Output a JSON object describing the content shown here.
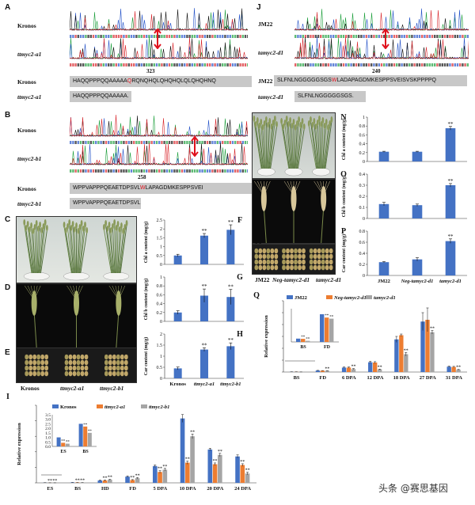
{
  "panels": {
    "A": {
      "label": "A",
      "trace1_label": "Kronos",
      "trace2_label": "ttmyc2-a1",
      "position_number": "323",
      "seq_wt_label": "Kronos",
      "seq_wt_pre": "HAQQPPPQQAAAAA",
      "seq_wt_mut": "Q",
      "seq_wt_post": "RQNQHQLQHQHQLQLQHQHNQ",
      "seq_mut_label": "ttmyc2-a1",
      "seq_mut": "HAQQPPPQQAAAAA."
    },
    "B": {
      "label": "B",
      "trace1_label": "Kronos",
      "trace2_label": "ttmyc2-b1",
      "position_number": "258",
      "seq_wt_label": "Kronos",
      "seq_wt_pre": "WPPVAPPPQEAETDPSVL",
      "seq_wt_mut": "W",
      "seq_wt_post": "LAPAGDMKESPPSVEI",
      "seq_mut_label": "ttmyc2-b1",
      "seq_mut": "WPPVAPPPQEAETDPSVL."
    },
    "J": {
      "label": "J",
      "trace1_label": "JM22",
      "trace2_label": "tamyc2-d1",
      "position_number": "240",
      "seq_wt_label": "JM22",
      "seq_wt_pre": "SLFNLNGGGGGSGS",
      "seq_wt_mut": "W",
      "seq_wt_post": "LADAPAGDMKESPPSVEISVSKPPPPQ",
      "seq_mut_label": "tamyc2-d1",
      "seq_mut": "SLFNLNGGGGGSGS."
    },
    "C": {
      "label": "C"
    },
    "D": {
      "label": "D"
    },
    "E": {
      "label": "E"
    },
    "K": {
      "label": "K"
    },
    "L": {
      "label": "L"
    },
    "M": {
      "label": "M"
    },
    "photos_left_labels": [
      "Kronos",
      "ttmyc2-a1",
      "ttmyc2-b1"
    ],
    "photos_right_labels": [
      "JM22",
      "Neg-tamyc2-d1",
      "tamyc2-d1"
    ]
  },
  "colors": {
    "blue": "#4472c4",
    "orange": "#ed7d31",
    "gray": "#a5a5a5",
    "seqbox": "#c8c8c8",
    "mutation": "#e0101c"
  },
  "chart_data": [
    {
      "id": "F",
      "label": "F",
      "type": "bar",
      "categories": [
        "Kronos",
        "ttmyc2-a1",
        "ttmyc2-b1"
      ],
      "values": [
        0.5,
        1.62,
        1.95
      ],
      "errors": [
        0.07,
        0.12,
        0.28
      ],
      "sig": [
        "",
        "**",
        "**"
      ],
      "ylabel": "Chl a content (mg/g)",
      "ylim": [
        0,
        2.5
      ],
      "yticks": [
        "0",
        "0.5",
        "1",
        "1.5",
        "2",
        "2.5"
      ],
      "show_xticks": false
    },
    {
      "id": "G",
      "label": "G",
      "type": "bar",
      "categories": [
        "Kronos",
        "ttmyc2-a1",
        "ttmyc2-b1"
      ],
      "values": [
        0.2,
        0.58,
        0.55
      ],
      "errors": [
        0.04,
        0.15,
        0.17
      ],
      "sig": [
        "",
        "**",
        "**"
      ],
      "ylabel": "Chl b content (mg/g)",
      "ylim": [
        0,
        1
      ],
      "yticks": [
        "0",
        "0.2",
        "0.4",
        "0.6",
        "0.8",
        "1"
      ],
      "show_xticks": false
    },
    {
      "id": "H",
      "label": "H",
      "type": "bar",
      "categories": [
        "Kronos",
        "ttmyc2-a1",
        "ttmyc2-b1"
      ],
      "values": [
        0.45,
        1.3,
        1.45
      ],
      "errors": [
        0.06,
        0.08,
        0.15
      ],
      "sig": [
        "",
        "**",
        "**"
      ],
      "ylabel": "Car content (mg/g)",
      "ylim": [
        0,
        2
      ],
      "yticks": [
        "0",
        "0.5",
        "1",
        "1.5",
        "2"
      ],
      "show_xticks": true
    },
    {
      "id": "N",
      "label": "N",
      "type": "bar",
      "categories": [
        "JM22",
        "Neg-tamyc2-d1",
        "tamyc2-d1"
      ],
      "values": [
        0.22,
        0.22,
        0.75
      ],
      "errors": [
        0.01,
        0.01,
        0.04
      ],
      "sig": [
        "",
        "",
        "**"
      ],
      "ylabel": "Chl a content (mg/g)",
      "ylim": [
        0,
        1
      ],
      "yticks": [
        "0",
        "0.2",
        "0.4",
        "0.6",
        "0.8",
        "1"
      ],
      "show_xticks": false
    },
    {
      "id": "O",
      "label": "O",
      "type": "bar",
      "categories": [
        "JM22",
        "Neg-tamyc2-d1",
        "tamyc2-d1"
      ],
      "values": [
        0.13,
        0.12,
        0.3
      ],
      "errors": [
        0.015,
        0.01,
        0.015
      ],
      "sig": [
        "",
        "",
        "**"
      ],
      "ylabel": "Chl b content (mg/g)",
      "ylim": [
        0,
        0.4
      ],
      "yticks": [
        "0",
        "0.1",
        "0.2",
        "0.3",
        "0.4"
      ],
      "show_xticks": false
    },
    {
      "id": "P",
      "label": "P",
      "type": "bar",
      "categories": [
        "JM22",
        "Neg-tamyc2-d1",
        "tamyc2-d1"
      ],
      "values": [
        0.24,
        0.29,
        0.62
      ],
      "errors": [
        0.01,
        0.03,
        0.04
      ],
      "sig": [
        "",
        "",
        "**"
      ],
      "ylabel": "Car content (mg/g)",
      "ylim": [
        0,
        0.8
      ],
      "yticks": [
        "0",
        "0.2",
        "0.4",
        "0.6",
        "0.8"
      ],
      "show_xticks": true
    },
    {
      "id": "Q",
      "label": "Q",
      "type": "bar",
      "categories": [
        "BS",
        "FD",
        "6 DPA",
        "12 DPA",
        "18 DPA",
        "27 DPA",
        "31 DPA"
      ],
      "series": [
        {
          "name": "JM22",
          "values": [
            0.3,
            2.5,
            7.5,
            16.5,
            55,
            85,
            9
          ],
          "errors": [
            0.1,
            0.3,
            1,
            1.5,
            5,
            15,
            1
          ]
        },
        {
          "name": "Neg-tamyc2-d1",
          "values": [
            0.28,
            2.2,
            7.5,
            16,
            62,
            88,
            8.5
          ],
          "errors": [
            0.1,
            0.3,
            1,
            1.5,
            2,
            20,
            1
          ]
        },
        {
          "name": "tamyc2-d1",
          "values": [
            0.1,
            2.1,
            5,
            4.5,
            30,
            67,
            4
          ],
          "errors": [
            0.05,
            0.2,
            0.8,
            0.5,
            3,
            3,
            0.5
          ]
        }
      ],
      "sig": [
        [
          "",
          "",
          ""
        ],
        [
          "",
          "",
          "**"
        ],
        [
          "",
          "",
          "**"
        ],
        [
          "",
          "",
          "**"
        ],
        [
          "",
          "",
          "**"
        ],
        [
          "",
          "",
          "**"
        ],
        [
          "",
          "",
          "**"
        ]
      ],
      "ylabel": "Relative expression",
      "ylim": [
        0,
        120
      ],
      "yticks": [
        "0",
        "20",
        "40",
        "60",
        "80",
        "100",
        "120"
      ],
      "inset": {
        "categories": [
          "BS",
          "FD"
        ],
        "series_values": [
          [
            0.3,
            2.5
          ],
          [
            0.28,
            2.2
          ],
          [
            0.1,
            2.1
          ]
        ],
        "ylim": [
          0,
          3
        ]
      }
    },
    {
      "id": "I",
      "label": "I",
      "type": "bar",
      "categories": [
        "ES",
        "BS",
        "HD",
        "FD",
        "5 DPA",
        "10 DPA",
        "20 DPA",
        "24 DPA"
      ],
      "series": [
        {
          "name": "Kronos",
          "values": [
            1.0,
            2.5,
            15,
            40,
            108,
            415,
            215,
            170
          ],
          "errors": [
            0.2,
            0.3,
            3,
            5,
            8,
            25,
            8,
            10
          ]
        },
        {
          "name": "ttmyc2-a1",
          "values": [
            0.4,
            2.2,
            15,
            18,
            70,
            130,
            120,
            115
          ],
          "errors": [
            0.1,
            0.3,
            3,
            3,
            8,
            10,
            8,
            8
          ]
        },
        {
          "name": "ttmyc2-b1",
          "values": [
            0.3,
            1.5,
            20,
            30,
            85,
            300,
            180,
            60
          ],
          "errors": [
            0.1,
            0.3,
            3,
            4,
            8,
            15,
            10,
            8
          ]
        }
      ],
      "sig": [
        [
          "",
          "**",
          "**"
        ],
        [
          "",
          "**",
          "**"
        ],
        [
          "",
          "**",
          "**"
        ],
        [
          "",
          "**",
          "**"
        ],
        [
          "",
          "**",
          "**"
        ],
        [
          "",
          "**",
          "**"
        ],
        [
          "",
          "**",
          "**"
        ],
        [
          "",
          "**",
          "**"
        ]
      ],
      "ylabel": "Relative expression",
      "ylim": [
        0,
        500
      ],
      "yticks": [
        "0",
        "100",
        "200",
        "300",
        "400",
        "500"
      ],
      "inset": {
        "categories": [
          "ES",
          "BS"
        ],
        "series_values": [
          [
            1.0,
            2.5
          ],
          [
            0.4,
            2.2
          ],
          [
            0.3,
            1.5
          ]
        ],
        "ylim": [
          0,
          3.5
        ],
        "yticks": [
          "0.0",
          "0.5",
          "1.0",
          "1.5",
          "2.0",
          "2.5",
          "3.0",
          "3.5"
        ]
      }
    }
  ],
  "watermark": {
    "text": "头条 @赛思基因"
  }
}
